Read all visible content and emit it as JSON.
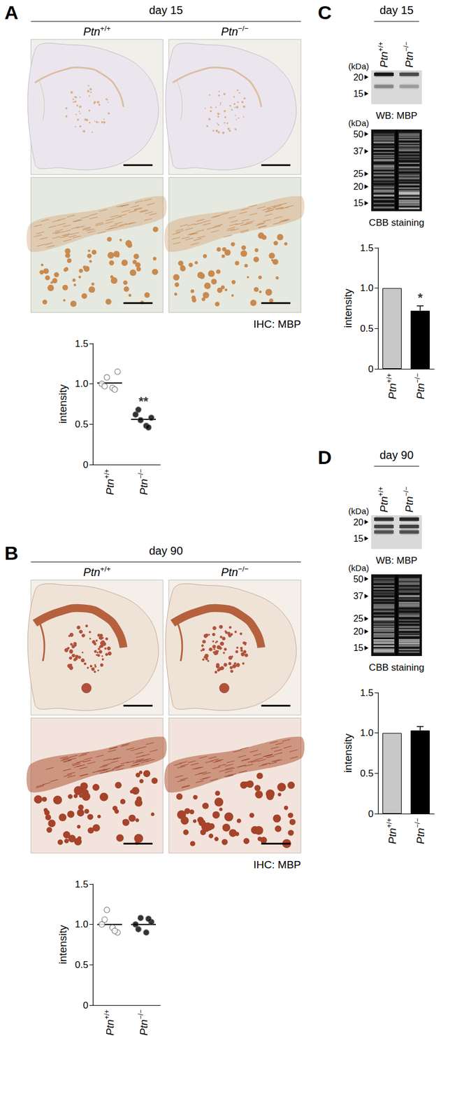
{
  "panels": [
    {
      "label": "A",
      "header": "day 15",
      "columns": [
        "Ptn+/+",
        "Ptn−/−"
      ],
      "caption": "IHC: MBP"
    },
    {
      "label": "B",
      "header": "day 90",
      "columns": [
        "Ptn+/+",
        "Ptn−/−"
      ],
      "caption": "IHC: MBP"
    },
    {
      "label": "C",
      "header": "day 15",
      "lanes": [
        "Ptn+/+",
        "Ptn−/−"
      ],
      "blots": [
        {
          "unit": "(kDa)",
          "markers": [
            20,
            15
          ],
          "caption": "WB: MBP"
        },
        {
          "unit": "(kDa)",
          "markers": [
            50,
            37,
            25,
            20,
            15
          ],
          "caption": "CBB staining"
        }
      ]
    },
    {
      "label": "D",
      "header": "day 90",
      "lanes": [
        "Ptn+/+",
        "Ptn−/−"
      ],
      "blots": [
        {
          "unit": "(kDa)",
          "markers": [
            20,
            15
          ],
          "caption": "WB: MBP"
        },
        {
          "unit": "(kDa)",
          "markers": [
            50,
            37,
            25,
            20,
            15
          ],
          "caption": "CBB staining"
        }
      ]
    }
  ],
  "chart_data": [
    {
      "type": "scatter",
      "ylabel": "intensity",
      "categories": [
        "Ptn+/+",
        "Ptn−/−"
      ],
      "values": [
        [
          1.0,
          1.08,
          0.95,
          1.15,
          0.97,
          0.93
        ],
        [
          0.62,
          0.55,
          0.48,
          0.58,
          0.68,
          0.46
        ]
      ],
      "means": [
        1.01,
        0.56
      ],
      "colors": [
        "#ffffff",
        "#000000"
      ],
      "marker": "circle",
      "annotations": [
        null,
        "**"
      ],
      "ylim": [
        0,
        1.5
      ],
      "yticks": [
        0,
        0.5,
        {
          "value": 1,
          "label": "1.0"
        },
        1.5
      ]
    },
    {
      "type": "scatter",
      "ylabel": "intensity",
      "categories": [
        "Ptn+/+",
        "Ptn−/−"
      ],
      "values": [
        [
          1.0,
          1.18,
          0.96,
          0.9,
          1.06,
          0.92
        ],
        [
          1.0,
          1.08,
          0.9,
          1.03,
          0.94,
          1.07
        ]
      ],
      "means": [
        1.0,
        1.0
      ],
      "colors": [
        "#ffffff",
        "#000000"
      ],
      "marker": "circle",
      "ylim": [
        0,
        1.5
      ],
      "yticks": [
        0,
        0.5,
        {
          "value": 1,
          "label": "1.0"
        },
        1.5
      ]
    },
    {
      "type": "bar",
      "ylabel": "intensity",
      "categories": [
        "Ptn+/+",
        "Ptn−/−"
      ],
      "values": [
        1.0,
        0.72
      ],
      "errors": [
        null,
        0.06
      ],
      "colors": [
        "#c8c8c8",
        "#000000"
      ],
      "annotations": [
        null,
        "*"
      ],
      "ylim": [
        0,
        1.5
      ],
      "yticks": [
        0,
        0.5,
        {
          "value": 1,
          "label": "1.0"
        },
        1.5
      ]
    },
    {
      "type": "bar",
      "ylabel": "intensity",
      "categories": [
        "Ptn+/+",
        "Ptn−/−"
      ],
      "values": [
        1.0,
        1.03
      ],
      "errors": [
        null,
        0.05
      ],
      "colors": [
        "#c8c8c8",
        "#000000"
      ],
      "ylim": [
        0,
        1.5
      ],
      "yticks": [
        0,
        0.5,
        {
          "value": 1,
          "label": "1.0"
        },
        1.5
      ]
    }
  ]
}
